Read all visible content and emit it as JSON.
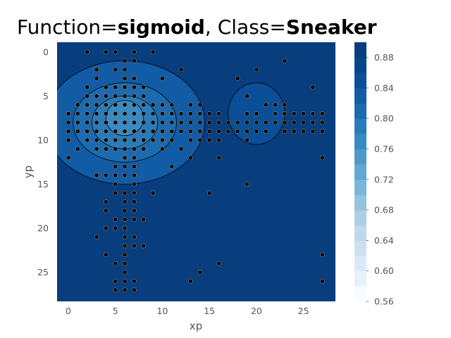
{
  "chart_data": {
    "type": "scatter",
    "title": {
      "prefix": "Function=",
      "function": "sigmoid",
      "separator": ", Class=",
      "class": "Sneaker"
    },
    "xlabel": "xp",
    "ylabel": "yp",
    "xlim": [
      -1.2,
      28.4
    ],
    "ylim": [
      28.3,
      -1.1
    ],
    "y_inverted": true,
    "grid": false,
    "x_ticks": [
      0,
      5,
      10,
      15,
      20,
      25
    ],
    "y_ticks": [
      0,
      5,
      10,
      15,
      20,
      25
    ],
    "colorbar": {
      "min": 0.56,
      "max": 0.9,
      "tick_labels": [
        "0.56",
        "0.60",
        "0.64",
        "0.68",
        "0.72",
        "0.76",
        "0.80",
        "0.84",
        "0.88"
      ],
      "tick_values": [
        0.56,
        0.6,
        0.64,
        0.68,
        0.72,
        0.76,
        0.8,
        0.84,
        0.88
      ],
      "levels": [
        0.56,
        0.58,
        0.6,
        0.62,
        0.64,
        0.66,
        0.68,
        0.7,
        0.72,
        0.74,
        0.76,
        0.78,
        0.8,
        0.82,
        0.84,
        0.86,
        0.88,
        0.9
      ],
      "colors": [
        "#f7fbff",
        "#e8f1fa",
        "#dbe9f6",
        "#cde0f1",
        "#bfd8ed",
        "#abd0e6",
        "#94c4df",
        "#7ab6d9",
        "#62a8d2",
        "#4d99ca",
        "#3a8ac2",
        "#2a7bb9",
        "#1c6bb0",
        "#115ca5",
        "#0a4f97",
        "#08468b",
        "#083d7e"
      ]
    },
    "background_color": "#083d7e",
    "regions": [
      {
        "cx": 6,
        "cy": 8,
        "rx": 8.5,
        "ry": 7,
        "value": 0.83
      },
      {
        "cx": 6,
        "cy": 8,
        "rx": 5.5,
        "ry": 4.5,
        "value": 0.81
      },
      {
        "cx": 6,
        "cy": 8,
        "rx": 3.5,
        "ry": 3,
        "value": 0.78
      },
      {
        "cx": 6,
        "cy": 7.5,
        "rx": 2,
        "ry": 2,
        "value": 0.76
      },
      {
        "cx": 20,
        "cy": 7,
        "rx": 3,
        "ry": 3.5,
        "value": 0.84
      }
    ],
    "points": [
      [
        2,
        0
      ],
      [
        4,
        0
      ],
      [
        5,
        0
      ],
      [
        7,
        0
      ],
      [
        9,
        0
      ],
      [
        6,
        1
      ],
      [
        7,
        1
      ],
      [
        23,
        1
      ],
      [
        3,
        2
      ],
      [
        5,
        2
      ],
      [
        6,
        2
      ],
      [
        12,
        2
      ],
      [
        20,
        2
      ],
      [
        3,
        3
      ],
      [
        6,
        3
      ],
      [
        7,
        3
      ],
      [
        10,
        3
      ],
      [
        18,
        3
      ],
      [
        2,
        4
      ],
      [
        4,
        4
      ],
      [
        5,
        4
      ],
      [
        6,
        4
      ],
      [
        7,
        4
      ],
      [
        8,
        4
      ],
      [
        26,
        4
      ],
      [
        2,
        5
      ],
      [
        3,
        5
      ],
      [
        4,
        5
      ],
      [
        5,
        5
      ],
      [
        6,
        5
      ],
      [
        7,
        5
      ],
      [
        8,
        5
      ],
      [
        19,
        5
      ],
      [
        1,
        6
      ],
      [
        2,
        6
      ],
      [
        3,
        6
      ],
      [
        4,
        6
      ],
      [
        5,
        6
      ],
      [
        6,
        6
      ],
      [
        7,
        6
      ],
      [
        8,
        6
      ],
      [
        9,
        6
      ],
      [
        10,
        6
      ],
      [
        11,
        6
      ],
      [
        13,
        6
      ],
      [
        14,
        6
      ],
      [
        21,
        6
      ],
      [
        22,
        6
      ],
      [
        23,
        6
      ],
      [
        0,
        7
      ],
      [
        1,
        7
      ],
      [
        2,
        7
      ],
      [
        3,
        7
      ],
      [
        4,
        7
      ],
      [
        5,
        7
      ],
      [
        6,
        7
      ],
      [
        7,
        7
      ],
      [
        8,
        7
      ],
      [
        9,
        7
      ],
      [
        10,
        7
      ],
      [
        11,
        7
      ],
      [
        12,
        7
      ],
      [
        13,
        7
      ],
      [
        14,
        7
      ],
      [
        15,
        7
      ],
      [
        16,
        7
      ],
      [
        19,
        7
      ],
      [
        20,
        7
      ],
      [
        22,
        7
      ],
      [
        23,
        7
      ],
      [
        24,
        7
      ],
      [
        25,
        7
      ],
      [
        26,
        7
      ],
      [
        27,
        7
      ],
      [
        0,
        8
      ],
      [
        1,
        8
      ],
      [
        2,
        8
      ],
      [
        3,
        8
      ],
      [
        4,
        8
      ],
      [
        5,
        8
      ],
      [
        6,
        8
      ],
      [
        7,
        8
      ],
      [
        8,
        8
      ],
      [
        9,
        8
      ],
      [
        10,
        8
      ],
      [
        11,
        8
      ],
      [
        12,
        8
      ],
      [
        13,
        8
      ],
      [
        14,
        8
      ],
      [
        15,
        8
      ],
      [
        16,
        8
      ],
      [
        17,
        8
      ],
      [
        18,
        8
      ],
      [
        19,
        8
      ],
      [
        20,
        8
      ],
      [
        21,
        8
      ],
      [
        22,
        8
      ],
      [
        23,
        8
      ],
      [
        24,
        8
      ],
      [
        25,
        8
      ],
      [
        26,
        8
      ],
      [
        27,
        8
      ],
      [
        0,
        9
      ],
      [
        1,
        9
      ],
      [
        2,
        9
      ],
      [
        3,
        9
      ],
      [
        4,
        9
      ],
      [
        5,
        9
      ],
      [
        6,
        9
      ],
      [
        7,
        9
      ],
      [
        8,
        9
      ],
      [
        9,
        9
      ],
      [
        10,
        9
      ],
      [
        11,
        9
      ],
      [
        12,
        9
      ],
      [
        13,
        9
      ],
      [
        14,
        9
      ],
      [
        15,
        9
      ],
      [
        16,
        9
      ],
      [
        17,
        9
      ],
      [
        18,
        9
      ],
      [
        19,
        9
      ],
      [
        20,
        9
      ],
      [
        21,
        9
      ],
      [
        23,
        9
      ],
      [
        24,
        9
      ],
      [
        25,
        9
      ],
      [
        26,
        9
      ],
      [
        27,
        9
      ],
      [
        0,
        10
      ],
      [
        2,
        10
      ],
      [
        3,
        10
      ],
      [
        4,
        10
      ],
      [
        5,
        10
      ],
      [
        6,
        10
      ],
      [
        7,
        10
      ],
      [
        8,
        10
      ],
      [
        9,
        10
      ],
      [
        10,
        10
      ],
      [
        11,
        10
      ],
      [
        13,
        10
      ],
      [
        14,
        10
      ],
      [
        15,
        10
      ],
      [
        16,
        10
      ],
      [
        19,
        10
      ],
      [
        1,
        11
      ],
      [
        3,
        11
      ],
      [
        4,
        11
      ],
      [
        5,
        11
      ],
      [
        6,
        11
      ],
      [
        7,
        11
      ],
      [
        8,
        11
      ],
      [
        10,
        11
      ],
      [
        12,
        11
      ],
      [
        0,
        12
      ],
      [
        6,
        12
      ],
      [
        7,
        12
      ],
      [
        13,
        12
      ],
      [
        16,
        12
      ],
      [
        27,
        12
      ],
      [
        5,
        13
      ],
      [
        6,
        13
      ],
      [
        7,
        13
      ],
      [
        11,
        13
      ],
      [
        3,
        14
      ],
      [
        4,
        14
      ],
      [
        5,
        14
      ],
      [
        6,
        14
      ],
      [
        7,
        14
      ],
      [
        5,
        15
      ],
      [
        7,
        15
      ],
      [
        19,
        15
      ],
      [
        5,
        16
      ],
      [
        6,
        16
      ],
      [
        7,
        16
      ],
      [
        9,
        16
      ],
      [
        15,
        16
      ],
      [
        4,
        17
      ],
      [
        6,
        17
      ],
      [
        7,
        17
      ],
      [
        4,
        18
      ],
      [
        6,
        18
      ],
      [
        7,
        18
      ],
      [
        5,
        19
      ],
      [
        6,
        19
      ],
      [
        7,
        19
      ],
      [
        8,
        19
      ],
      [
        4,
        20
      ],
      [
        5,
        20
      ],
      [
        6,
        20
      ],
      [
        3,
        21
      ],
      [
        6,
        21
      ],
      [
        7,
        21
      ],
      [
        6,
        22
      ],
      [
        7,
        22
      ],
      [
        8,
        22
      ],
      [
        4,
        23
      ],
      [
        6,
        23
      ],
      [
        27,
        23
      ],
      [
        5,
        24
      ],
      [
        6,
        24
      ],
      [
        16,
        24
      ],
      [
        6,
        25
      ],
      [
        14,
        25
      ],
      [
        5,
        26
      ],
      [
        6,
        26
      ],
      [
        7,
        26
      ],
      [
        13,
        26
      ],
      [
        27,
        26
      ],
      [
        5,
        27
      ],
      [
        6,
        27
      ],
      [
        7,
        27
      ]
    ]
  }
}
